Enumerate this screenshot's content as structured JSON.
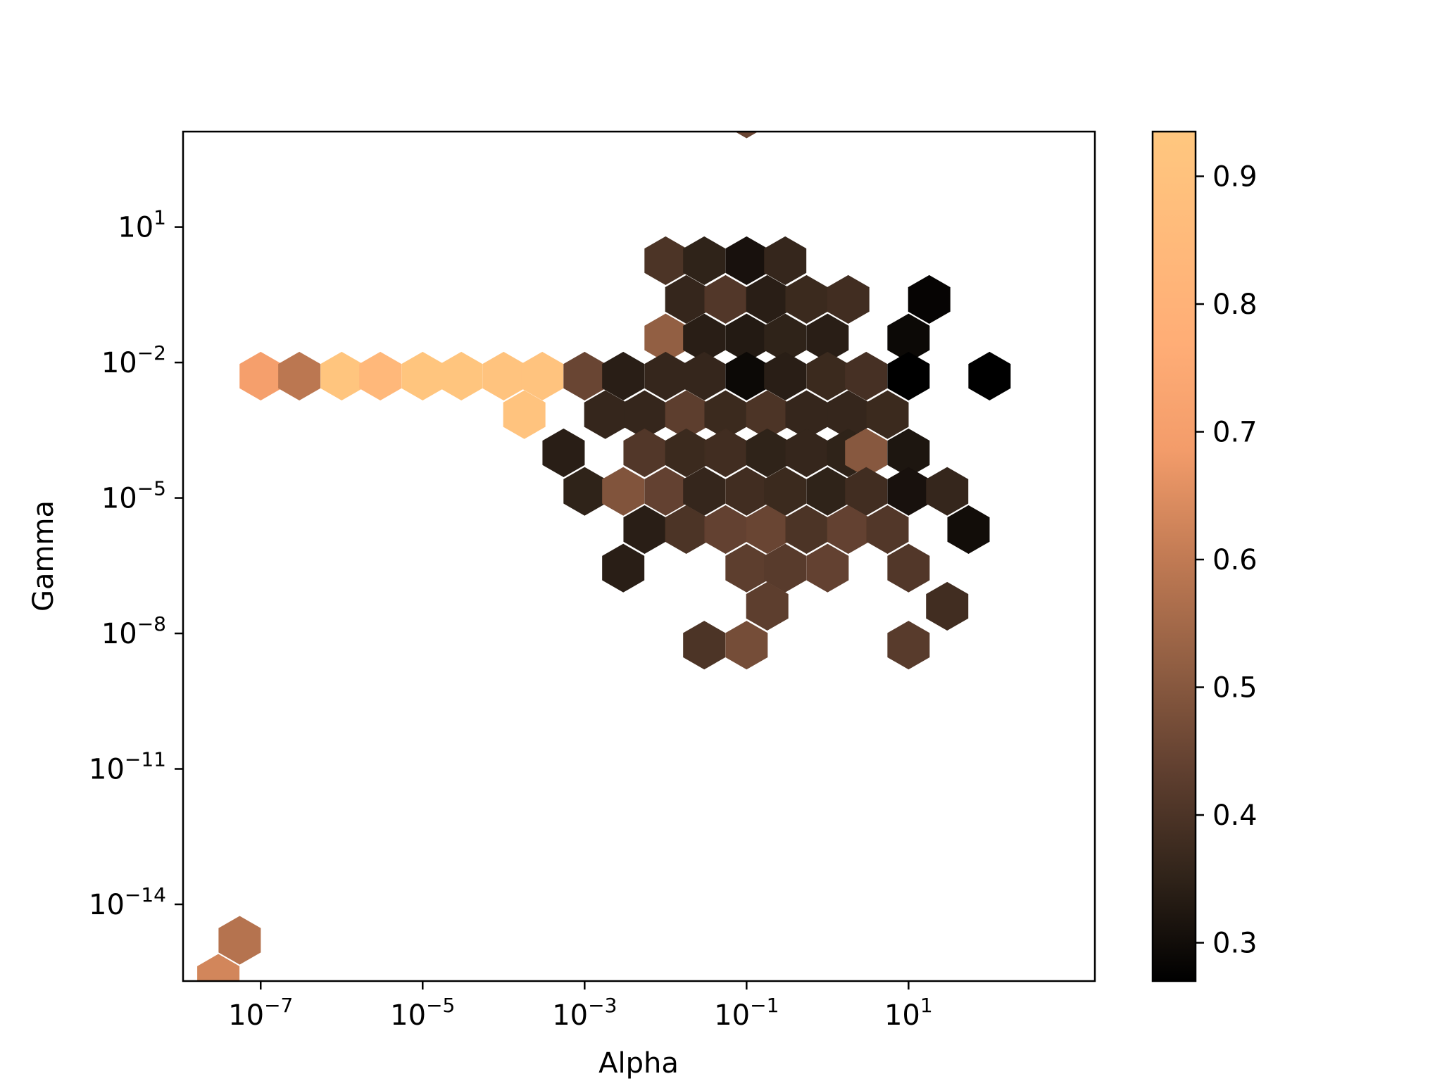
{
  "chart_data": {
    "type": "hexbin",
    "title": "",
    "xlabel": "Alpha",
    "ylabel": "Gamma",
    "xscale": "log",
    "yscale": "log",
    "xlim": [
      1.1e-08,
      2000
    ],
    "ylim": [
      2e-16,
      1300.0
    ],
    "x_ticks": [
      {
        "exp": "−7",
        "value": 1e-07
      },
      {
        "exp": "−5",
        "value": 1e-05
      },
      {
        "exp": "−3",
        "value": 0.001
      },
      {
        "exp": "−1",
        "value": 0.1
      },
      {
        "exp": "1",
        "value": 10
      }
    ],
    "y_ticks": [
      {
        "exp": "1",
        "value": 10
      },
      {
        "exp": "−2",
        "value": 0.01
      },
      {
        "exp": "−5",
        "value": 1e-05
      },
      {
        "exp": "−8",
        "value": 1e-08
      },
      {
        "exp": "−11",
        "value": 1e-11
      },
      {
        "exp": "−14",
        "value": 1e-14
      }
    ],
    "tick_base": "10",
    "colorbar": {
      "cmap": "copper",
      "range": [
        0.27,
        0.935
      ],
      "ticks": [
        "0.3",
        "0.4",
        "0.5",
        "0.6",
        "0.7",
        "0.8",
        "0.9"
      ]
    },
    "grid": false,
    "cells": [
      {
        "x": 0.1,
        "y": 3200.0,
        "v": 0.45
      },
      {
        "x": 0.01,
        "y": 1.8,
        "v": 0.4
      },
      {
        "x": 0.03,
        "y": 1.8,
        "v": 0.35
      },
      {
        "x": 0.1,
        "y": 1.8,
        "v": 0.31
      },
      {
        "x": 0.3,
        "y": 1.8,
        "v": 0.36
      },
      {
        "x": 0.018,
        "y": 0.25,
        "v": 0.36
      },
      {
        "x": 0.055,
        "y": 0.25,
        "v": 0.41
      },
      {
        "x": 0.18,
        "y": 0.25,
        "v": 0.34
      },
      {
        "x": 0.55,
        "y": 0.25,
        "v": 0.37
      },
      {
        "x": 1.8,
        "y": 0.25,
        "v": 0.38
      },
      {
        "x": 18,
        "y": 0.25,
        "v": 0.28
      },
      {
        "x": 0.01,
        "y": 0.035,
        "v": 0.52
      },
      {
        "x": 0.03,
        "y": 0.035,
        "v": 0.34
      },
      {
        "x": 0.1,
        "y": 0.035,
        "v": 0.33
      },
      {
        "x": 0.3,
        "y": 0.035,
        "v": 0.35
      },
      {
        "x": 1,
        "y": 0.035,
        "v": 0.34
      },
      {
        "x": 10,
        "y": 0.035,
        "v": 0.29
      },
      {
        "x": 1e-07,
        "y": 0.005,
        "v": 0.7
      },
      {
        "x": 3e-07,
        "y": 0.005,
        "v": 0.59
      },
      {
        "x": 1e-06,
        "y": 0.005,
        "v": 0.92
      },
      {
        "x": 3e-06,
        "y": 0.005,
        "v": 0.84
      },
      {
        "x": 1e-05,
        "y": 0.005,
        "v": 0.92
      },
      {
        "x": 3e-05,
        "y": 0.005,
        "v": 0.92
      },
      {
        "x": 0.0001,
        "y": 0.005,
        "v": 0.91
      },
      {
        "x": 0.0003,
        "y": 0.005,
        "v": 0.91
      },
      {
        "x": 0.001,
        "y": 0.005,
        "v": 0.45
      },
      {
        "x": 0.003,
        "y": 0.005,
        "v": 0.34
      },
      {
        "x": 0.01,
        "y": 0.005,
        "v": 0.36
      },
      {
        "x": 0.03,
        "y": 0.005,
        "v": 0.36
      },
      {
        "x": 0.1,
        "y": 0.005,
        "v": 0.29
      },
      {
        "x": 0.3,
        "y": 0.005,
        "v": 0.34
      },
      {
        "x": 1,
        "y": 0.005,
        "v": 0.37
      },
      {
        "x": 3,
        "y": 0.005,
        "v": 0.39
      },
      {
        "x": 10,
        "y": 0.005,
        "v": 0.27
      },
      {
        "x": 100,
        "y": 0.005,
        "v": 0.27
      },
      {
        "x": 0.00018,
        "y": 0.0007,
        "v": 0.91
      },
      {
        "x": 0.0018,
        "y": 0.0007,
        "v": 0.36
      },
      {
        "x": 0.0055,
        "y": 0.0007,
        "v": 0.36
      },
      {
        "x": 0.018,
        "y": 0.0007,
        "v": 0.43
      },
      {
        "x": 0.055,
        "y": 0.0007,
        "v": 0.37
      },
      {
        "x": 0.18,
        "y": 0.0007,
        "v": 0.4
      },
      {
        "x": 0.55,
        "y": 0.0007,
        "v": 0.36
      },
      {
        "x": 1.8,
        "y": 0.0007,
        "v": 0.36
      },
      {
        "x": 5.5,
        "y": 0.0007,
        "v": 0.37
      },
      {
        "x": 0.00055,
        "y": 0.0001,
        "v": 0.34
      },
      {
        "x": 0.0055,
        "y": 0.0001,
        "v": 0.41
      },
      {
        "x": 0.018,
        "y": 0.0001,
        "v": 0.37
      },
      {
        "x": 0.055,
        "y": 0.0001,
        "v": 0.38
      },
      {
        "x": 0.18,
        "y": 0.0001,
        "v": 0.35
      },
      {
        "x": 0.55,
        "y": 0.0001,
        "v": 0.36
      },
      {
        "x": 1.8,
        "y": 0.0001,
        "v": 0.35
      },
      {
        "x": 3,
        "y": 0.0001,
        "v": 0.5
      },
      {
        "x": 10,
        "y": 0.0001,
        "v": 0.32
      },
      {
        "x": 0.001,
        "y": 1.4e-05,
        "v": 0.35
      },
      {
        "x": 0.003,
        "y": 1.4e-05,
        "v": 0.49
      },
      {
        "x": 0.01,
        "y": 1.4e-05,
        "v": 0.44
      },
      {
        "x": 0.03,
        "y": 1.4e-05,
        "v": 0.36
      },
      {
        "x": 0.1,
        "y": 1.4e-05,
        "v": 0.38
      },
      {
        "x": 0.3,
        "y": 1.4e-05,
        "v": 0.37
      },
      {
        "x": 1,
        "y": 1.4e-05,
        "v": 0.35
      },
      {
        "x": 3,
        "y": 1.4e-05,
        "v": 0.38
      },
      {
        "x": 10,
        "y": 1.4e-05,
        "v": 0.31
      },
      {
        "x": 30,
        "y": 1.4e-05,
        "v": 0.36
      },
      {
        "x": 0.0055,
        "y": 2e-06,
        "v": 0.34
      },
      {
        "x": 0.018,
        "y": 2e-06,
        "v": 0.4
      },
      {
        "x": 0.055,
        "y": 2e-06,
        "v": 0.44
      },
      {
        "x": 0.18,
        "y": 2e-06,
        "v": 0.45
      },
      {
        "x": 0.55,
        "y": 2e-06,
        "v": 0.4
      },
      {
        "x": 1.8,
        "y": 2e-06,
        "v": 0.44
      },
      {
        "x": 5.5,
        "y": 2e-06,
        "v": 0.41
      },
      {
        "x": 55,
        "y": 2e-06,
        "v": 0.3
      },
      {
        "x": 0.003,
        "y": 2.8e-07,
        "v": 0.34
      },
      {
        "x": 0.1,
        "y": 2.8e-07,
        "v": 0.43
      },
      {
        "x": 0.3,
        "y": 2.8e-07,
        "v": 0.42
      },
      {
        "x": 1,
        "y": 2.8e-07,
        "v": 0.44
      },
      {
        "x": 10,
        "y": 2.8e-07,
        "v": 0.41
      },
      {
        "x": 0.18,
        "y": 4e-08,
        "v": 0.43
      },
      {
        "x": 30,
        "y": 4e-08,
        "v": 0.38
      },
      {
        "x": 0.03,
        "y": 5.5e-09,
        "v": 0.4
      },
      {
        "x": 0.1,
        "y": 5.5e-09,
        "v": 0.47
      },
      {
        "x": 10,
        "y": 5.5e-09,
        "v": 0.42
      },
      {
        "x": 5.5e-08,
        "y": 1.6e-15,
        "v": 0.58
      },
      {
        "x": 3e-08,
        "y": 2.3e-16,
        "v": 0.63
      }
    ]
  }
}
